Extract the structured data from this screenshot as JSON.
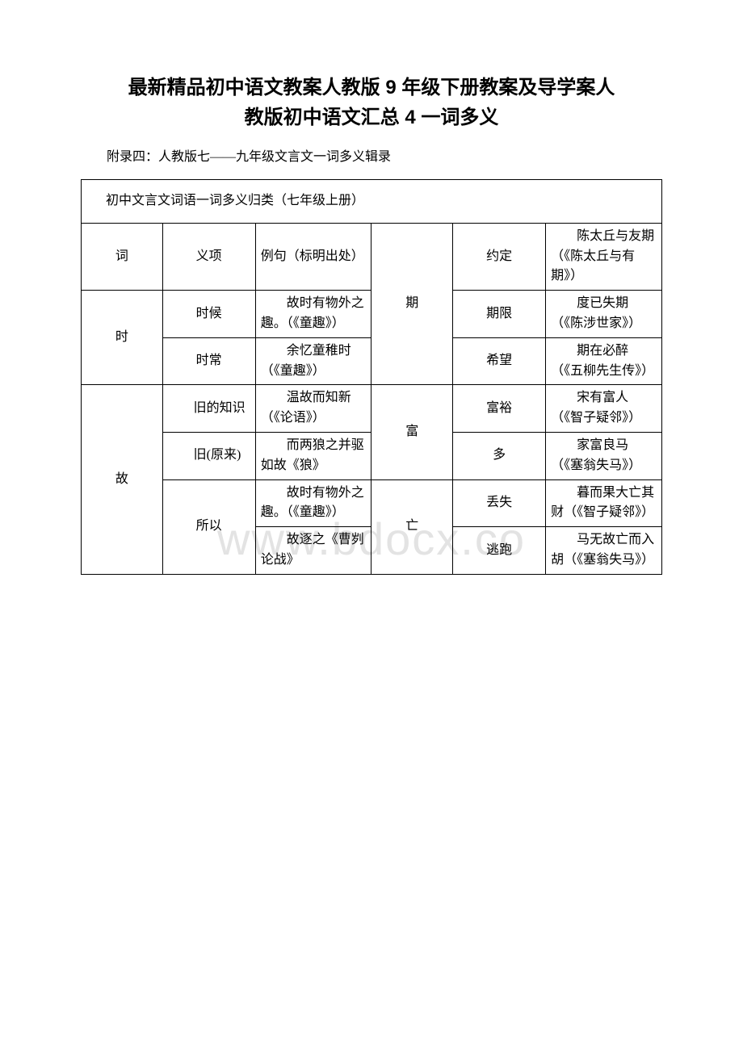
{
  "title_line1": "最新精品初中语文教案人教版 9 年级下册教案及导学案人",
  "title_line2": "教版初中语文汇总 4 一词多义",
  "subtitle": "附录四：人教版七——九年级文言文一词多义辑录",
  "table_caption": "初中文言文词语一词多义归类（七年级上册）",
  "watermark": "www.bdocx.co",
  "header": {
    "c1": "词",
    "c2": "义项",
    "c3": "例句（标明出处）"
  },
  "words": {
    "shi": {
      "char": "时",
      "rows": [
        {
          "mean": "时候",
          "ex": "　　故时有物外之趣。（《童趣》）"
        },
        {
          "mean": "时常",
          "ex": "　　余忆童稚时（《童趣》）"
        }
      ]
    },
    "gu": {
      "char": "故",
      "rows": [
        {
          "mean": "　　旧的知识",
          "ex": "　　温故而知新（《论语》）"
        },
        {
          "mean": "　　旧(原来)",
          "ex": "　　而两狼之并驱如故《狼》"
        },
        {
          "mean": "所以",
          "ex": "　　故时有物外之趣。（《童趣》）"
        },
        {
          "mean_continue": true,
          "ex": "　　故逐之《曹刿论战》"
        }
      ]
    },
    "qi": {
      "char": "期",
      "rows": [
        {
          "mean": "约定",
          "ex": "　　陈太丘与友期（《陈太丘与有期》）"
        },
        {
          "mean": "期限",
          "ex": "　　度已失期（《陈涉世家》）"
        },
        {
          "mean": "希望",
          "ex": "　　期在必醉（《五柳先生传》）"
        }
      ]
    },
    "fu": {
      "char": "富",
      "rows": [
        {
          "mean": "富裕",
          "ex": "　　宋有富人（《智子疑邻》）"
        },
        {
          "mean": "多",
          "ex": "　　家富良马（《塞翁失马》）"
        }
      ]
    },
    "wang": {
      "char": "亡",
      "rows": [
        {
          "mean": "丢失",
          "ex": "　　暮而果大亡其财（《智子疑邻》）"
        },
        {
          "mean": "逃跑",
          "ex": "　　马无故亡而入胡（《塞翁失马》）"
        }
      ]
    }
  }
}
